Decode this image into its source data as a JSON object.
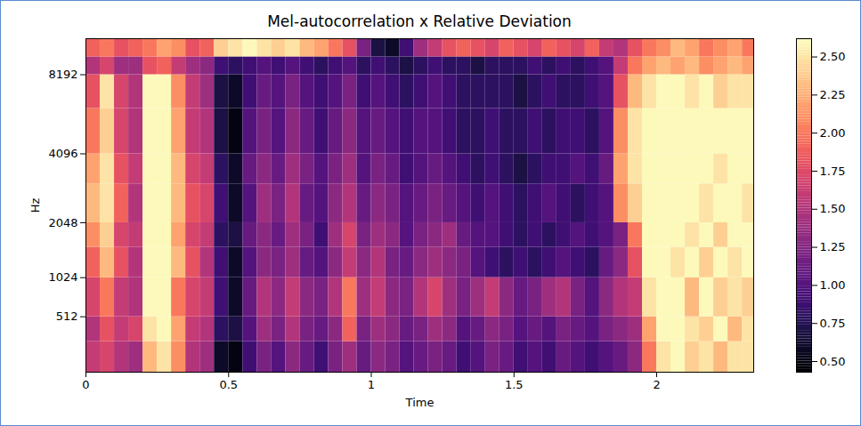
{
  "chart_data": {
    "type": "heatmap",
    "title": "Mel-autocorrelation x Relative Deviation",
    "x_label": "Time",
    "y_label": "Hz",
    "color": "magma",
    "log": "y",
    "xlim": [
      0,
      2.34
    ],
    "xticks": [
      0,
      0.5,
      1,
      1.5,
      2
    ],
    "ylim": [
      0,
      11025
    ],
    "yticks": [
      512,
      1024,
      2048,
      4096,
      8192
    ],
    "x_edges": [
      0,
      0.05,
      0.1,
      0.15,
      0.2,
      0.25,
      0.3,
      0.35,
      0.4,
      0.45,
      0.5,
      0.55,
      0.6,
      0.65,
      0.7,
      0.75,
      0.8,
      0.85,
      0.9,
      0.95,
      1,
      1.05,
      1.1,
      1.15,
      1.2,
      1.25,
      1.3,
      1.35,
      1.4,
      1.45,
      1.5,
      1.55,
      1.6,
      1.65,
      1.7,
      1.75,
      1.8,
      1.85,
      1.9,
      1.95,
      2,
      2.05,
      2.1,
      2.15,
      2.2,
      2.25,
      2.3,
      2.35
    ],
    "y_edges": [
      0,
      256,
      512,
      1024,
      1536,
      2048,
      3072,
      4096,
      6144,
      8192,
      9500,
      11025
    ],
    "values": [
      [
        1.6,
        1.7,
        1.5,
        1.4,
        2.3,
        2.5,
        2.1,
        1.5,
        1.4,
        0.6,
        0.5,
        0.9,
        1.2,
        1.0,
        1.3,
        1.1,
        0.9,
        1.2,
        1.4,
        1.1,
        1.3,
        1.2,
        1.0,
        1.1,
        1.2,
        1.1,
        0.9,
        1.0,
        1.2,
        1.1,
        0.9,
        1.0,
        0.9,
        1.1,
        1.0,
        0.9,
        1.0,
        1.1,
        1.3,
        2.0,
        2.5,
        2.6,
        2.4,
        2.5,
        2.3,
        2.5,
        2.5
      ],
      [
        1.5,
        1.8,
        1.6,
        1.7,
        2.5,
        2.6,
        2.2,
        1.6,
        1.5,
        0.8,
        0.7,
        1.0,
        1.4,
        1.2,
        1.5,
        1.2,
        1.1,
        1.3,
        1.9,
        1.2,
        1.4,
        1.3,
        1.1,
        1.2,
        1.4,
        1.3,
        1.0,
        1.1,
        1.3,
        1.2,
        1.0,
        1.1,
        1.0,
        1.2,
        1.1,
        1.0,
        1.2,
        1.3,
        1.4,
        2.2,
        2.6,
        2.6,
        2.5,
        2.4,
        2.6,
        2.3,
        2.5
      ],
      [
        1.7,
        2.0,
        1.6,
        1.5,
        2.6,
        2.6,
        2.0,
        1.7,
        1.6,
        0.9,
        0.6,
        1.1,
        1.5,
        1.3,
        1.6,
        1.3,
        1.2,
        1.5,
        2.0,
        1.4,
        1.6,
        1.3,
        1.2,
        1.5,
        1.7,
        1.4,
        1.2,
        1.4,
        1.6,
        1.3,
        1.1,
        1.2,
        1.4,
        1.5,
        1.2,
        1.0,
        1.3,
        1.5,
        1.6,
        2.5,
        2.6,
        2.6,
        2.3,
        2.6,
        2.4,
        2.5,
        2.4
      ],
      [
        1.9,
        2.3,
        1.8,
        1.5,
        2.6,
        2.6,
        2.3,
        1.8,
        1.5,
        0.9,
        0.6,
        1.0,
        1.3,
        1.2,
        1.4,
        1.1,
        1.0,
        1.3,
        1.6,
        1.3,
        1.5,
        1.2,
        1.1,
        1.3,
        1.4,
        1.3,
        1.2,
        1.0,
        0.9,
        0.8,
        0.9,
        0.8,
        0.9,
        1.0,
        0.9,
        0.8,
        1.1,
        1.3,
        1.8,
        2.6,
        2.6,
        2.5,
        2.6,
        2.4,
        2.6,
        2.5,
        2.6
      ],
      [
        2.1,
        2.4,
        1.7,
        1.6,
        2.6,
        2.6,
        2.2,
        1.7,
        1.6,
        0.8,
        0.7,
        1.1,
        1.3,
        1.1,
        1.4,
        1.2,
        0.9,
        1.4,
        1.7,
        1.2,
        1.4,
        1.3,
        1.0,
        1.2,
        1.3,
        1.4,
        1.1,
        1.0,
        1.0,
        0.9,
        0.8,
        0.9,
        0.8,
        0.9,
        1.0,
        0.9,
        1.0,
        1.2,
        2.0,
        2.6,
        2.6,
        2.6,
        2.5,
        2.6,
        2.4,
        2.6,
        2.6
      ],
      [
        2.3,
        2.5,
        1.9,
        1.5,
        2.6,
        2.6,
        2.3,
        1.8,
        1.7,
        0.9,
        0.6,
        1.0,
        1.4,
        1.2,
        1.5,
        1.1,
        1.0,
        1.3,
        1.5,
        1.1,
        1.3,
        1.2,
        1.0,
        1.1,
        1.2,
        1.1,
        1.0,
        0.9,
        1.0,
        0.9,
        0.8,
        0.9,
        1.0,
        0.9,
        0.8,
        0.9,
        1.0,
        2.1,
        2.4,
        2.6,
        2.6,
        2.6,
        2.6,
        2.5,
        2.6,
        2.6,
        2.5
      ],
      [
        2.2,
        2.5,
        1.8,
        1.6,
        2.6,
        2.6,
        2.3,
        1.7,
        1.6,
        0.8,
        0.6,
        1.1,
        1.3,
        1.1,
        1.4,
        1.2,
        1.0,
        1.2,
        1.4,
        1.0,
        1.2,
        1.1,
        0.9,
        1.0,
        1.1,
        1.0,
        0.9,
        0.8,
        0.9,
        0.8,
        0.7,
        0.8,
        0.9,
        0.9,
        1.0,
        0.9,
        1.1,
        2.2,
        2.5,
        2.6,
        2.6,
        2.6,
        2.6,
        2.6,
        2.5,
        2.6,
        2.6
      ],
      [
        2.0,
        2.4,
        1.7,
        1.5,
        2.6,
        2.6,
        2.2,
        1.6,
        1.5,
        0.7,
        0.5,
        1.0,
        1.2,
        1.0,
        1.3,
        1.1,
        0.9,
        1.1,
        1.3,
        1.0,
        1.1,
        1.0,
        0.9,
        1.0,
        1.0,
        0.9,
        0.8,
        0.8,
        0.9,
        0.8,
        0.8,
        0.9,
        0.8,
        0.9,
        0.9,
        0.8,
        1.0,
        2.1,
        2.5,
        2.6,
        2.6,
        2.6,
        2.6,
        2.6,
        2.6,
        2.6,
        2.6
      ],
      [
        1.8,
        2.5,
        1.7,
        1.5,
        2.6,
        2.6,
        2.1,
        1.6,
        1.4,
        0.7,
        0.6,
        0.9,
        1.1,
        1.0,
        1.2,
        1.0,
        0.9,
        1.0,
        1.2,
        0.9,
        1.0,
        0.9,
        0.8,
        0.9,
        1.0,
        0.9,
        0.8,
        0.8,
        0.8,
        0.8,
        0.7,
        0.8,
        0.9,
        0.8,
        0.8,
        0.9,
        1.0,
        1.8,
        2.3,
        2.5,
        2.6,
        2.6,
        2.5,
        2.6,
        2.4,
        2.5,
        2.5
      ],
      [
        1.5,
        1.7,
        1.4,
        1.4,
        1.8,
        1.9,
        1.6,
        1.4,
        1.3,
        0.9,
        0.8,
        0.9,
        1.0,
        0.9,
        1.0,
        0.9,
        0.8,
        0.9,
        1.0,
        0.8,
        0.9,
        0.8,
        0.7,
        0.8,
        0.9,
        0.8,
        0.8,
        0.7,
        0.8,
        0.8,
        0.8,
        0.9,
        0.8,
        0.9,
        0.8,
        0.9,
        1.0,
        1.6,
        2.0,
        2.2,
        2.3,
        2.2,
        2.3,
        2.1,
        2.2,
        2.3,
        2.2
      ],
      [
        1.9,
        2.0,
        1.8,
        1.9,
        2.0,
        2.2,
        2.1,
        1.8,
        1.9,
        2.4,
        2.5,
        2.6,
        2.5,
        2.4,
        2.5,
        2.3,
        2.2,
        2.0,
        1.8,
        1.2,
        0.7,
        0.6,
        0.9,
        1.4,
        1.6,
        1.8,
        1.9,
        1.8,
        1.7,
        1.9,
        1.8,
        1.7,
        1.9,
        1.8,
        1.7,
        1.9,
        1.6,
        1.5,
        1.8,
        2.0,
        2.1,
        2.3,
        2.2,
        2.0,
        2.1,
        2.2,
        2.0
      ]
    ],
    "colorbar": {
      "range": [
        0.43,
        2.62
      ],
      "ticks": [
        {
          "value": 0.5,
          "label": "0.50"
        },
        {
          "value": 0.75,
          "label": "0.75"
        },
        {
          "value": 1,
          "label": "1.00"
        },
        {
          "value": 1.25,
          "label": "1.25"
        },
        {
          "value": 1.5,
          "label": "1.50"
        },
        {
          "value": 1.75,
          "label": "1.75"
        },
        {
          "value": 2,
          "label": "2.00"
        },
        {
          "value": 2.25,
          "label": "2.25"
        },
        {
          "value": 2.5,
          "label": "2.50"
        }
      ]
    }
  }
}
